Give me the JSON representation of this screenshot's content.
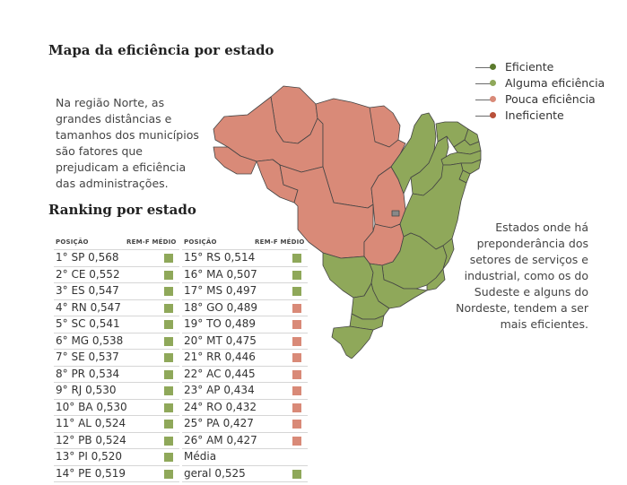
{
  "map_title": "Mapa da eficiência por estado",
  "ranking_title": "Ranking por estado",
  "note_north": "Na região Norte, as grandes distâncias e tamanhos dos municípios são fatores que prejudicam a eficiência das administrações.",
  "note_south": "Estados onde há preponderância dos setores de serviços e industrial, como os do Sudeste e alguns do Nordeste, tendem a ser mais eficientes.",
  "colors": {
    "eficiente": "#5b7a2c",
    "alguma": "#8fa85a",
    "pouca": "#d98a78",
    "ineficiente": "#b9503a",
    "map_green": "#8fa85a",
    "map_red": "#d98a78"
  },
  "legend": [
    {
      "label": "Eficiente",
      "color": "#5b7a2c"
    },
    {
      "label": "Alguma eficiência",
      "color": "#8fa85a"
    },
    {
      "label": "Pouca eficiência",
      "color": "#d98a78"
    },
    {
      "label": "Ineficiente",
      "color": "#b9503a"
    }
  ],
  "ranking_headers": {
    "position": "POSIÇÃO",
    "rem": "REM-F MÉDIO"
  },
  "ranking_col1": [
    {
      "text": "1° SP 0,568",
      "level": "alguma"
    },
    {
      "text": "2° CE 0,552",
      "level": "alguma"
    },
    {
      "text": "3° ES 0,547",
      "level": "alguma"
    },
    {
      "text": "4° RN 0,547",
      "level": "alguma"
    },
    {
      "text": "5° SC 0,541",
      "level": "alguma"
    },
    {
      "text": "6° MG 0,538",
      "level": "alguma"
    },
    {
      "text": "7° SE 0,537",
      "level": "alguma"
    },
    {
      "text": "8° PR 0,534",
      "level": "alguma"
    },
    {
      "text": "9° RJ 0,530",
      "level": "alguma"
    },
    {
      "text": "10° BA 0,530",
      "level": "alguma"
    },
    {
      "text": "11° AL 0,524",
      "level": "alguma"
    },
    {
      "text": "12° PB 0,524",
      "level": "alguma"
    },
    {
      "text": "13° PI 0,520",
      "level": "alguma"
    },
    {
      "text": "14° PE 0,519",
      "level": "alguma"
    }
  ],
  "ranking_col2": [
    {
      "text": "15° RS 0,514",
      "level": "alguma"
    },
    {
      "text": "16° MA 0,507",
      "level": "alguma"
    },
    {
      "text": "17° MS 0,497",
      "level": "alguma"
    },
    {
      "text": "18° GO 0,489",
      "level": "pouca"
    },
    {
      "text": "19° TO 0,489",
      "level": "pouca"
    },
    {
      "text": "20° MT 0,475",
      "level": "pouca"
    },
    {
      "text": "21° RR 0,446",
      "level": "pouca"
    },
    {
      "text": "22° AC 0,445",
      "level": "pouca"
    },
    {
      "text": "23° AP 0,434",
      "level": "pouca"
    },
    {
      "text": "24° RO 0,432",
      "level": "pouca"
    },
    {
      "text": "25° PA 0,427",
      "level": "pouca"
    },
    {
      "text": "26° AM 0,427",
      "level": "pouca"
    },
    {
      "text": "Média",
      "level": ""
    },
    {
      "text": "geral 0,525",
      "level": "alguma"
    }
  ]
}
